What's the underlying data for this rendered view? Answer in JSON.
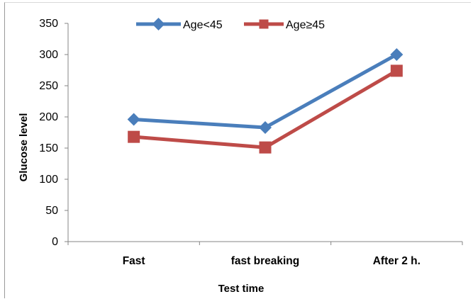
{
  "chart_data": {
    "type": "line",
    "title": "",
    "xlabel": "Test time",
    "ylabel": "Glucose level",
    "categories": [
      "Fast",
      "fast breaking",
      "After 2 h."
    ],
    "ylim": [
      0,
      350
    ],
    "yticks": [
      0,
      50,
      100,
      150,
      200,
      250,
      300,
      350
    ],
    "grid": false,
    "legend_position": "top",
    "series": [
      {
        "name": "Age<45",
        "values": [
          196,
          183,
          300
        ],
        "color": "#4a7ebb",
        "marker": "diamond"
      },
      {
        "name": "Age≥45",
        "values": [
          168,
          151,
          274
        ],
        "color": "#be4b48",
        "marker": "square"
      }
    ]
  }
}
